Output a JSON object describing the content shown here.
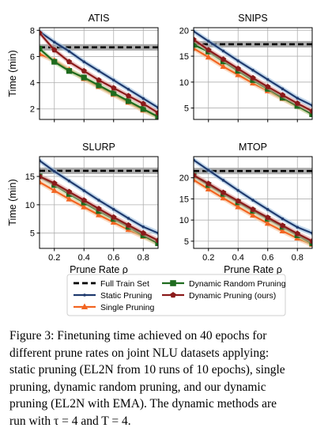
{
  "chart_data": [
    {
      "type": "line",
      "title": "ATIS",
      "xlabel": "",
      "ylabel": "Time (min)",
      "xlim": [
        0.1,
        0.9
      ],
      "ylim": [
        1.2,
        8.2
      ],
      "xticks": [
        0.2,
        0.4,
        0.6,
        0.8
      ],
      "yticks": [
        2,
        4,
        6,
        8
      ],
      "xtick_labels": [],
      "ytick_labels": [
        "2",
        "4",
        "6",
        "8"
      ],
      "full_train": 6.7,
      "series": [
        {
          "name": "Static Pruning",
          "color": "#1f3a6e",
          "marker": "dot",
          "x": [
            0.1,
            0.2,
            0.3,
            0.4,
            0.5,
            0.6,
            0.7,
            0.8,
            0.9
          ],
          "y": [
            7.9,
            7.1,
            6.4,
            5.6,
            4.9,
            4.2,
            3.5,
            2.8,
            2.1
          ]
        },
        {
          "name": "Single Pruning",
          "color": "#f26522",
          "marker": "triangle",
          "x": [
            0.1,
            0.2,
            0.3,
            0.4,
            0.5,
            0.6,
            0.7,
            0.8,
            0.9
          ],
          "y": [
            6.2,
            5.7,
            5.0,
            4.3,
            3.7,
            3.1,
            2.5,
            1.9,
            1.4
          ]
        },
        {
          "name": "Dynamic Random Pruning",
          "color": "#1e6b1e",
          "marker": "square",
          "x": [
            0.1,
            0.2,
            0.3,
            0.4,
            0.5,
            0.6,
            0.7,
            0.8,
            0.9
          ],
          "y": [
            6.6,
            5.6,
            4.9,
            4.4,
            3.8,
            3.2,
            2.6,
            2.0,
            1.4
          ]
        },
        {
          "name": "Dynamic Pruning (ours)",
          "color": "#8b1a1a",
          "marker": "pentagon",
          "x": [
            0.1,
            0.2,
            0.3,
            0.4,
            0.5,
            0.6,
            0.7,
            0.8,
            0.9
          ],
          "y": [
            7.8,
            6.5,
            5.6,
            4.9,
            4.2,
            3.6,
            3.0,
            2.4,
            1.7
          ]
        }
      ]
    },
    {
      "type": "line",
      "title": "SNIPS",
      "xlabel": "",
      "ylabel": "",
      "xlim": [
        0.1,
        0.9
      ],
      "ylim": [
        2.8,
        20.5
      ],
      "xticks": [
        0.2,
        0.4,
        0.6,
        0.8
      ],
      "yticks": [
        5,
        10,
        15,
        20
      ],
      "xtick_labels": [],
      "ytick_labels": [
        "5",
        "10",
        "15",
        "20"
      ],
      "full_train": 17.3,
      "series": [
        {
          "name": "Static Pruning",
          "color": "#1f3a6e",
          "marker": "dot",
          "x": [
            0.1,
            0.2,
            0.3,
            0.4,
            0.5,
            0.6,
            0.7,
            0.8,
            0.9
          ],
          "y": [
            19.8,
            17.9,
            16.0,
            14.1,
            12.3,
            10.5,
            8.7,
            6.9,
            5.5
          ]
        },
        {
          "name": "Single Pruning",
          "color": "#f26522",
          "marker": "triangle",
          "x": [
            0.1,
            0.2,
            0.3,
            0.4,
            0.5,
            0.6,
            0.7,
            0.8,
            0.9
          ],
          "y": [
            16.5,
            14.8,
            13.0,
            11.4,
            9.8,
            8.3,
            6.8,
            5.3,
            3.9
          ]
        },
        {
          "name": "Dynamic Random Pruning",
          "color": "#1e6b1e",
          "marker": "square",
          "x": [
            0.1,
            0.2,
            0.3,
            0.4,
            0.5,
            0.6,
            0.7,
            0.8,
            0.9
          ],
          "y": [
            17.2,
            15.9,
            14.0,
            12.2,
            10.4,
            8.7,
            7.0,
            5.4,
            3.8
          ]
        },
        {
          "name": "Dynamic Pruning (ours)",
          "color": "#8b1a1a",
          "marker": "pentagon",
          "x": [
            0.1,
            0.2,
            0.3,
            0.4,
            0.5,
            0.6,
            0.7,
            0.8,
            0.9
          ],
          "y": [
            18.2,
            16.2,
            14.4,
            12.6,
            10.8,
            9.1,
            7.5,
            5.9,
            4.4
          ]
        }
      ]
    },
    {
      "type": "line",
      "title": "SLURP",
      "xlabel": "Prune Rate ρ",
      "ylabel": "Time (min)",
      "xlim": [
        0.1,
        0.9
      ],
      "ylim": [
        2.3,
        18.5
      ],
      "xticks": [
        0.2,
        0.4,
        0.6,
        0.8
      ],
      "yticks": [
        5,
        10,
        15
      ],
      "xtick_labels": [
        "0.2",
        "0.4",
        "0.6",
        "0.8"
      ],
      "ytick_labels": [
        "5",
        "10",
        "15"
      ],
      "full_train": 16.0,
      "series": [
        {
          "name": "Static Pruning",
          "color": "#1f3a6e",
          "marker": "dot",
          "x": [
            0.1,
            0.2,
            0.3,
            0.4,
            0.5,
            0.6,
            0.7,
            0.8,
            0.9
          ],
          "y": [
            17.8,
            15.9,
            14.2,
            12.5,
            10.8,
            9.2,
            7.6,
            6.1,
            5.0
          ]
        },
        {
          "name": "Single Pruning",
          "color": "#f26522",
          "marker": "triangle",
          "x": [
            0.1,
            0.2,
            0.3,
            0.4,
            0.5,
            0.6,
            0.7,
            0.8,
            0.9
          ],
          "y": [
            14.0,
            12.5,
            11.0,
            9.6,
            8.2,
            6.9,
            5.6,
            4.4,
            3.2
          ]
        },
        {
          "name": "Dynamic Random Pruning",
          "color": "#1e6b1e",
          "marker": "square",
          "x": [
            0.1,
            0.2,
            0.3,
            0.4,
            0.5,
            0.6,
            0.7,
            0.8,
            0.9
          ],
          "y": [
            15.0,
            13.5,
            11.9,
            10.4,
            8.9,
            7.5,
            6.1,
            4.6,
            3.2
          ]
        },
        {
          "name": "Dynamic Pruning (ours)",
          "color": "#8b1a1a",
          "marker": "pentagon",
          "x": [
            0.1,
            0.2,
            0.3,
            0.4,
            0.5,
            0.6,
            0.7,
            0.8,
            0.9
          ],
          "y": [
            15.0,
            13.8,
            12.3,
            10.8,
            9.3,
            7.8,
            6.4,
            5.0,
            3.7
          ]
        }
      ]
    },
    {
      "type": "line",
      "title": "MTOP",
      "xlabel": "Prune Rate ρ",
      "ylabel": "",
      "xlim": [
        0.1,
        0.9
      ],
      "ylim": [
        3.3,
        25.0
      ],
      "xticks": [
        0.2,
        0.4,
        0.6,
        0.8
      ],
      "yticks": [
        5,
        10,
        15,
        20
      ],
      "xtick_labels": [
        "0.2",
        "0.4",
        "0.6",
        "0.8"
      ],
      "ytick_labels": [
        "5",
        "10",
        "15",
        "20"
      ],
      "full_train": 21.6,
      "series": [
        {
          "name": "Static Pruning",
          "color": "#1f3a6e",
          "marker": "dot",
          "x": [
            0.1,
            0.2,
            0.3,
            0.4,
            0.5,
            0.6,
            0.7,
            0.8,
            0.9
          ],
          "y": [
            24.2,
            21.8,
            19.4,
            17.0,
            14.7,
            12.5,
            10.3,
            8.3,
            6.9
          ]
        },
        {
          "name": "Single Pruning",
          "color": "#f26522",
          "marker": "triangle",
          "x": [
            0.1,
            0.2,
            0.3,
            0.4,
            0.5,
            0.6,
            0.7,
            0.8,
            0.9
          ],
          "y": [
            19.5,
            17.3,
            15.2,
            13.1,
            11.1,
            9.2,
            7.4,
            5.7,
            4.2
          ]
        },
        {
          "name": "Dynamic Random Pruning",
          "color": "#1e6b1e",
          "marker": "square",
          "x": [
            0.1,
            0.2,
            0.3,
            0.4,
            0.5,
            0.6,
            0.7,
            0.8,
            0.9
          ],
          "y": [
            20.5,
            18.3,
            16.2,
            14.2,
            12.2,
            10.3,
            8.4,
            6.4,
            4.5
          ]
        },
        {
          "name": "Dynamic Pruning (ours)",
          "color": "#8b1a1a",
          "marker": "pentagon",
          "x": [
            0.1,
            0.2,
            0.3,
            0.4,
            0.5,
            0.6,
            0.7,
            0.8,
            0.9
          ],
          "y": [
            20.6,
            18.6,
            16.5,
            14.5,
            12.5,
            10.6,
            8.7,
            6.8,
            5.0
          ]
        }
      ]
    }
  ],
  "legend": {
    "placement": "bottom-center",
    "entries": [
      {
        "label": "Full Train Set",
        "color": "#000000",
        "marker": "dashed"
      },
      {
        "label": "Static Pruning",
        "color": "#1f3a6e",
        "marker": "dot"
      },
      {
        "label": "Single Pruning",
        "color": "#f26522",
        "marker": "triangle"
      },
      {
        "label": "Dynamic Random Pruning",
        "color": "#1e6b1e",
        "marker": "square"
      },
      {
        "label": "Dynamic Pruning (ours)",
        "color": "#8b1a1a",
        "marker": "pentagon"
      }
    ]
  },
  "caption": {
    "lines": [
      "Figure 3: Finetuning time achieved on 40 epochs for",
      "different prune rates on joint NLU datasets applying:",
      "static pruning (EL2N from 10 runs of 10 epochs), single",
      "pruning, dynamic random pruning, and our dynamic",
      "pruning (EL2N with EMA). The dynamic methods are",
      "run with τ = 4 and T = 4."
    ]
  }
}
